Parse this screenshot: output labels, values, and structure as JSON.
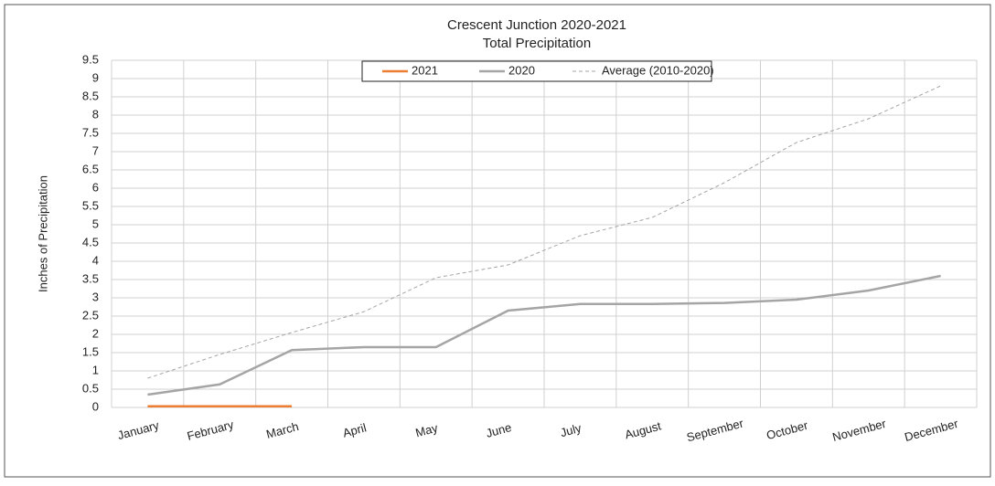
{
  "chart_data": {
    "type": "line",
    "title": "Crescent Junction 2020-2021",
    "subtitle": "Total Precipitation",
    "y_label": "Inches of Precipitation",
    "categories": [
      "January",
      "February",
      "March",
      "April",
      "May",
      "June",
      "July",
      "August",
      "September",
      "October",
      "November",
      "December"
    ],
    "series": [
      {
        "name": "2021",
        "color": "#ed7d31",
        "dash": false,
        "values": [
          0.03,
          0.03,
          0.03,
          null,
          null,
          null,
          null,
          null,
          null,
          null,
          null,
          null
        ]
      },
      {
        "name": "2020",
        "color": "#a5a5a5",
        "dash": false,
        "values": [
          0.35,
          0.63,
          1.57,
          1.65,
          1.65,
          2.65,
          2.83,
          2.83,
          2.86,
          2.95,
          3.2,
          3.6
        ]
      },
      {
        "name": "Average (2010-2020)",
        "color": "#a5a5a5",
        "dash": true,
        "values": [
          0.8,
          1.45,
          2.05,
          2.62,
          3.55,
          3.9,
          4.7,
          5.2,
          6.15,
          7.25,
          7.9,
          8.8
        ]
      }
    ],
    "ylim": [
      0,
      9.5
    ],
    "yticks": [
      0,
      0.5,
      1,
      1.5,
      2,
      2.5,
      3,
      3.5,
      4,
      4.5,
      5,
      5.5,
      6,
      6.5,
      7,
      7.5,
      8,
      8.5,
      9,
      9.5
    ],
    "grid": true,
    "legend": "top"
  }
}
